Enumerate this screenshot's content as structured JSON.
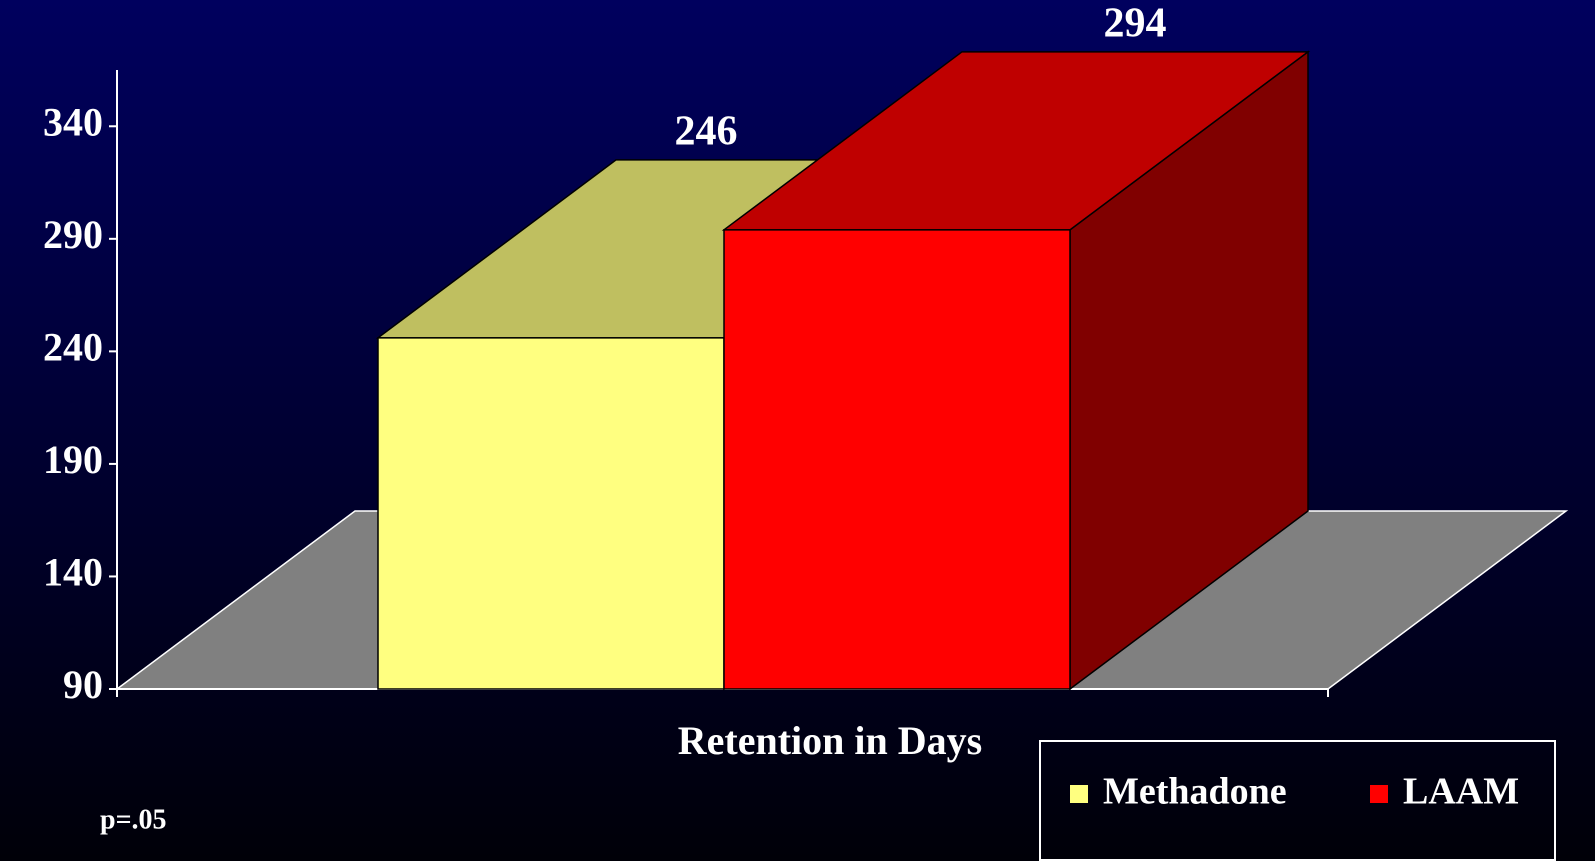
{
  "chart_data": {
    "type": "bar3d",
    "x_label": "Retention in Days",
    "annotation": "p=.05",
    "series": [
      {
        "name": "Methadone",
        "color": "#ffff80",
        "values": [
          246
        ]
      },
      {
        "name": "LAAM",
        "color": "#ff0000",
        "values": [
          294
        ]
      }
    ],
    "ylim": [
      90,
      365
    ],
    "yticks": [
      90,
      140,
      190,
      240,
      290,
      340
    ],
    "legend": "bottom-right"
  }
}
